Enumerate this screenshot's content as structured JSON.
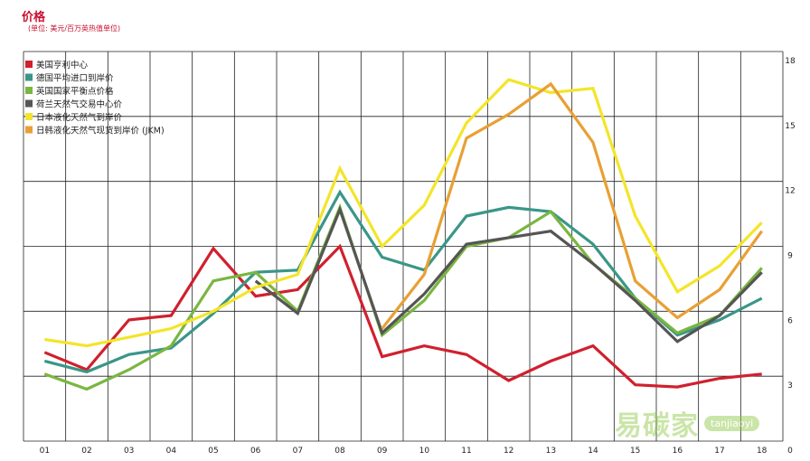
{
  "chart_data": {
    "type": "line",
    "title": "价格",
    "subtitle": "(单位: 美元/百万英热值单位)",
    "x": [
      "01",
      "02",
      "03",
      "04",
      "05",
      "06",
      "07",
      "08",
      "09",
      "10",
      "11",
      "12",
      "13",
      "14",
      "15",
      "16",
      "17",
      "18"
    ],
    "y_ticks": [
      "0",
      "3",
      "6",
      "9",
      "12",
      "15",
      "18"
    ],
    "ylim": [
      0,
      18
    ],
    "grid": true,
    "legend_position": "top-left",
    "series": [
      {
        "name": "美国亨利中心",
        "color": "#d0202e",
        "values": [
          4.1,
          3.3,
          5.6,
          5.8,
          8.9,
          6.7,
          7.0,
          9.0,
          3.9,
          4.4,
          4.0,
          2.8,
          3.7,
          4.4,
          2.6,
          2.5,
          2.9,
          3.1
        ]
      },
      {
        "name": "德国平均进口到岸价",
        "color": "#3a9688",
        "values": [
          3.7,
          3.2,
          4.0,
          4.3,
          5.9,
          7.8,
          7.9,
          11.5,
          8.5,
          7.9,
          10.4,
          10.8,
          10.6,
          9.1,
          6.6,
          4.9,
          5.6,
          6.6
        ]
      },
      {
        "name": "英国国家平衡点价格",
        "color": "#7ab640",
        "values": [
          3.1,
          2.4,
          3.3,
          4.4,
          7.4,
          7.8,
          6.0,
          10.8,
          4.9,
          6.5,
          9.0,
          9.4,
          10.6,
          8.2,
          6.6,
          5.0,
          5.8,
          8.0
        ]
      },
      {
        "name": "荷兰天然气交易中心价",
        "color": "#555555",
        "values": [
          null,
          null,
          null,
          null,
          null,
          7.4,
          5.9,
          10.7,
          5.0,
          6.8,
          9.1,
          9.4,
          9.7,
          8.2,
          6.5,
          4.6,
          5.8,
          7.8
        ]
      },
      {
        "name": "日本液化天然气到岸价",
        "color": "#f3e52a",
        "values": [
          4.7,
          4.4,
          4.8,
          5.2,
          6.0,
          7.1,
          7.7,
          12.6,
          9.0,
          10.9,
          14.7,
          16.7,
          16.1,
          16.3,
          10.4,
          6.9,
          8.1,
          10.1
        ]
      },
      {
        "name": "日韩液化天然气现货到岸价 (JKM)",
        "color": "#e8a034",
        "values": [
          null,
          null,
          null,
          null,
          null,
          null,
          null,
          null,
          5.2,
          7.7,
          14.0,
          15.1,
          16.5,
          13.8,
          7.4,
          5.7,
          7.0,
          9.7
        ]
      }
    ]
  },
  "watermark": {
    "cn": "易碳家",
    "en": "tanjiaoyi"
  }
}
